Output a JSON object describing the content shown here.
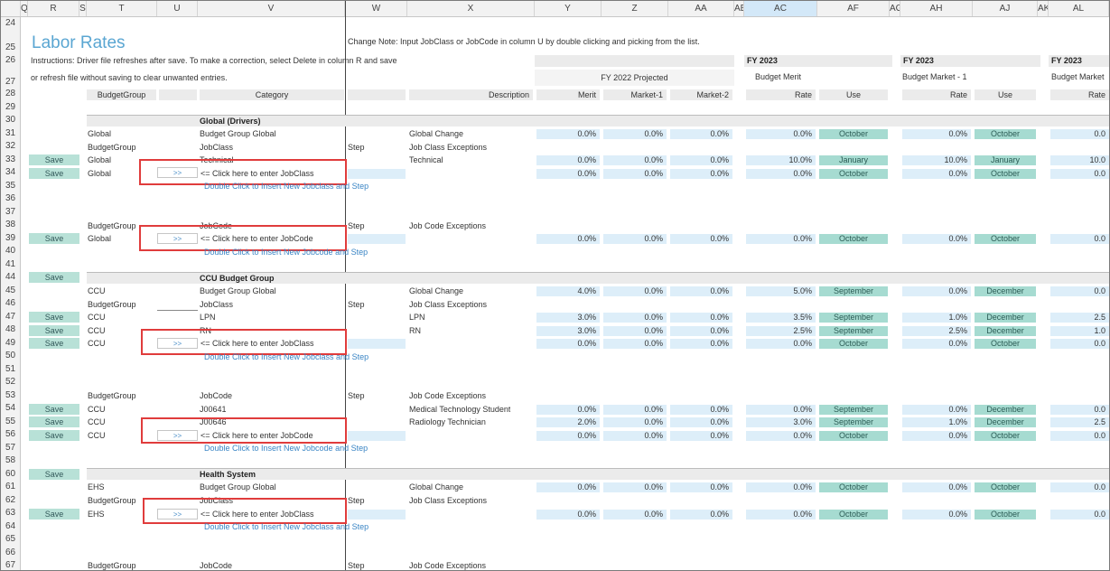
{
  "col_headers": [
    "Q",
    "R",
    "S",
    "T",
    "U",
    "V",
    "W",
    "X",
    "Y",
    "Z",
    "AA",
    "AB",
    "AC",
    "AF",
    "AG",
    "AH",
    "AJ",
    "AK",
    "AL"
  ],
  "row_numbers": [
    "24",
    "25",
    "26",
    "27",
    "28",
    "29",
    "30",
    "31",
    "32",
    "33",
    "34",
    "35",
    "36",
    "37",
    "38",
    "39",
    "40",
    "41",
    "44",
    "45",
    "46",
    "47",
    "48",
    "49",
    "50",
    "51",
    "52",
    "53",
    "54",
    "55",
    "56",
    "57",
    "58",
    "60",
    "61",
    "62",
    "63",
    "64",
    "65",
    "66",
    "67"
  ],
  "title": "Labor Rates",
  "change_note": "Change Note: Input JobClass or JobCode in column U by double clicking and picking from the list.",
  "instructions_1": "Instructions:  Driver file refreshes after save.  To make a correction, select Delete in column R and save",
  "instructions_2": "or refresh file without saving to clear unwanted entries.",
  "fy_headers": [
    "FY 2023",
    "FY 2023",
    "FY 2023"
  ],
  "fy2022_projected": "FY 2022 Projected",
  "budget_merit": "Budget Merit",
  "budget_market1": "Budget Market - 1",
  "budget_market_trunc": "Budget Market",
  "hdr": {
    "budget_group": "BudgetGroup",
    "category": "Category",
    "description": "Description",
    "merit": "Merit",
    "market1": "Market-1",
    "market2": "Market-2",
    "rate": "Rate",
    "use": "Use",
    "rate2": "Rate",
    "use2": "Use",
    "rate3": "Rate"
  },
  "sections": {
    "global": "Global (Drivers)",
    "ccu": "CCU Budget Group",
    "hs": "Health System"
  },
  "labels": {
    "budgetgroup": "BudgetGroup",
    "jobclass": "JobClass",
    "jobcode": "JobCode",
    "step": "Step",
    "jc_exceptions": "Job Class Exceptions",
    "jcode_exceptions": "Job Code Exceptions",
    "global_change": "Global Change",
    "budget_group_global": "Budget Group Global",
    "click_jobclass": "<= Click here to enter JobClass",
    "click_jobcode": "<= Click here to enter JobCode",
    "dbl_jobclass": "Double Click to Insert New Jobclass and Step",
    "dbl_jobcode": "Double Click to Insert New Jobcode and Step",
    "pick": ">>",
    "save": "Save"
  },
  "rows": {
    "r31": {
      "bg": "Global",
      "cat": "Budget Group Global",
      "desc": "Global Change",
      "y": "0.0%",
      "z": "0.0%",
      "aa": "0.0%",
      "ac": "0.0%",
      "af": "October",
      "ah": "0.0%",
      "aj": "October",
      "al": "0.0"
    },
    "r33": {
      "bg": "Global",
      "cat": "Technical",
      "desc": "Technical",
      "y": "0.0%",
      "z": "0.0%",
      "aa": "0.0%",
      "ac": "10.0%",
      "af": "January",
      "ah": "10.0%",
      "aj": "January",
      "al": "10.0"
    },
    "r34": {
      "bg": "Global",
      "y": "0.0%",
      "z": "0.0%",
      "aa": "0.0%",
      "ac": "0.0%",
      "af": "October",
      "ah": "0.0%",
      "aj": "October",
      "al": "0.0"
    },
    "r39": {
      "bg": "Global",
      "y": "0.0%",
      "z": "0.0%",
      "aa": "0.0%",
      "ac": "0.0%",
      "af": "October",
      "ah": "0.0%",
      "aj": "October",
      "al": "0.0"
    },
    "r45": {
      "bg": "CCU",
      "cat": "Budget Group Global",
      "desc": "Global Change",
      "y": "4.0%",
      "z": "0.0%",
      "aa": "0.0%",
      "ac": "5.0%",
      "af": "September",
      "ah": "0.0%",
      "aj": "December",
      "al": "0.0"
    },
    "r47": {
      "bg": "CCU",
      "cat": "LPN",
      "desc": "LPN",
      "y": "3.0%",
      "z": "0.0%",
      "aa": "0.0%",
      "ac": "3.5%",
      "af": "September",
      "ah": "1.0%",
      "aj": "December",
      "al": "2.5"
    },
    "r48": {
      "bg": "CCU",
      "cat": "RN",
      "desc": "RN",
      "y": "3.0%",
      "z": "0.0%",
      "aa": "0.0%",
      "ac": "2.5%",
      "af": "September",
      "ah": "2.5%",
      "aj": "December",
      "al": "1.0"
    },
    "r49": {
      "bg": "CCU",
      "y": "0.0%",
      "z": "0.0%",
      "aa": "0.0%",
      "ac": "0.0%",
      "af": "October",
      "ah": "0.0%",
      "aj": "October",
      "al": "0.0"
    },
    "r54": {
      "bg": "CCU",
      "cat": "J00641",
      "desc": "Medical Technology Student",
      "y": "0.0%",
      "z": "0.0%",
      "aa": "0.0%",
      "ac": "0.0%",
      "af": "September",
      "ah": "0.0%",
      "aj": "December",
      "al": "0.0"
    },
    "r55": {
      "bg": "CCU",
      "cat": "J00646",
      "desc": "Radiology Technician",
      "y": "2.0%",
      "z": "0.0%",
      "aa": "0.0%",
      "ac": "3.0%",
      "af": "September",
      "ah": "1.0%",
      "aj": "December",
      "al": "2.5"
    },
    "r56": {
      "bg": "CCU",
      "y": "0.0%",
      "z": "0.0%",
      "aa": "0.0%",
      "ac": "0.0%",
      "af": "October",
      "ah": "0.0%",
      "aj": "October",
      "al": "0.0"
    },
    "r61": {
      "bg": "EHS",
      "cat": "Budget Group Global",
      "desc": "Global Change",
      "y": "0.0%",
      "z": "0.0%",
      "aa": "0.0%",
      "ac": "0.0%",
      "af": "October",
      "ah": "0.0%",
      "aj": "October",
      "al": "0.0"
    },
    "r63": {
      "bg": "EHS",
      "y": "0.0%",
      "z": "0.0%",
      "aa": "0.0%",
      "ac": "0.0%",
      "af": "October",
      "ah": "0.0%",
      "aj": "October",
      "al": "0.0"
    }
  }
}
